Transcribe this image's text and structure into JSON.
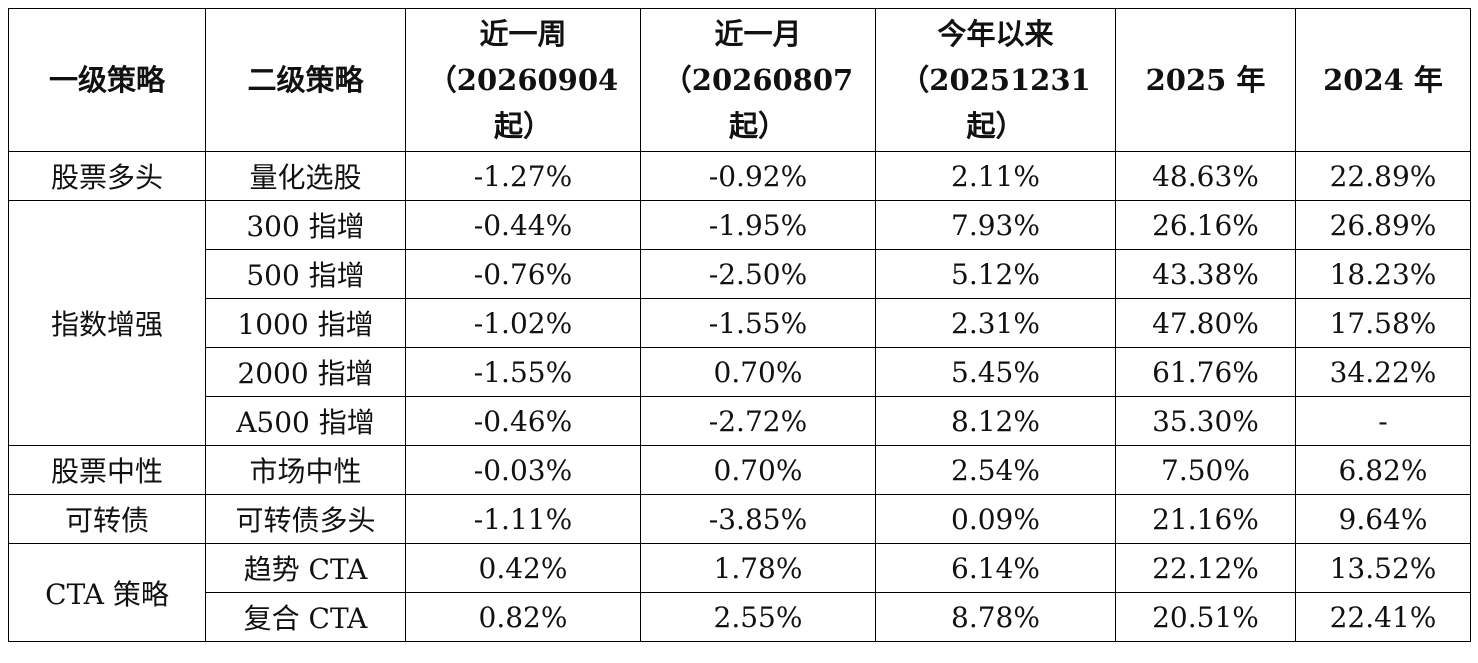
{
  "table": {
    "header": [
      [
        "一级策略"
      ],
      [
        "二级策略"
      ],
      [
        "近一周",
        "（20260904",
        "起）"
      ],
      [
        "近一月",
        "（20260807",
        "起）"
      ],
      [
        "今年以来",
        "（20251231",
        "起）"
      ],
      [
        "2025 年"
      ],
      [
        "2024 年"
      ]
    ],
    "groups": [
      {
        "name": "股票多头",
        "rows": [
          [
            "量化选股",
            "-1.27%",
            "-0.92%",
            "2.11%",
            "48.63%",
            "22.89%"
          ]
        ]
      },
      {
        "name": "指数增强",
        "rows": [
          [
            "300 指增",
            "-0.44%",
            "-1.95%",
            "7.93%",
            "26.16%",
            "26.89%"
          ],
          [
            "500 指增",
            "-0.76%",
            "-2.50%",
            "5.12%",
            "43.38%",
            "18.23%"
          ],
          [
            "1000 指增",
            "-1.02%",
            "-1.55%",
            "2.31%",
            "47.80%",
            "17.58%"
          ],
          [
            "2000 指增",
            "-1.55%",
            "0.70%",
            "5.45%",
            "61.76%",
            "34.22%"
          ],
          [
            "A500 指增",
            "-0.46%",
            "-2.72%",
            "8.12%",
            "35.30%",
            "-"
          ]
        ]
      },
      {
        "name": "股票中性",
        "rows": [
          [
            "市场中性",
            "-0.03%",
            "0.70%",
            "2.54%",
            "7.50%",
            "6.82%"
          ]
        ]
      },
      {
        "name": "可转债",
        "rows": [
          [
            "可转债多头",
            "-1.11%",
            "-3.85%",
            "0.09%",
            "21.16%",
            "9.64%"
          ]
        ]
      },
      {
        "name": "CTA 策略",
        "rows": [
          [
            "趋势 CTA",
            "0.42%",
            "1.78%",
            "6.14%",
            "22.12%",
            "13.52%"
          ],
          [
            "复合 CTA",
            "0.82%",
            "2.55%",
            "8.78%",
            "20.51%",
            "22.41%"
          ]
        ]
      }
    ]
  }
}
